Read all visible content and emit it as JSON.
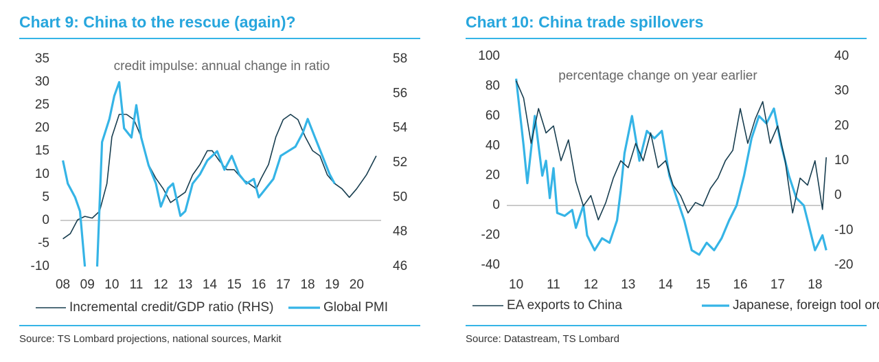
{
  "chart_data": [
    {
      "type": "line",
      "title": "Chart 9: China to the rescue (again)?",
      "subtitle": "credit impulse: annual change in ratio",
      "source": "Source: TS Lombard projections, national sources, Markit",
      "xlim": [
        2007.9,
        2021.0
      ],
      "xticks": [
        {
          "value": 2008,
          "label": "08"
        },
        {
          "value": 2009,
          "label": "09"
        },
        {
          "value": 2010,
          "label": "10"
        },
        {
          "value": 2011,
          "label": "11"
        },
        {
          "value": 2012,
          "label": "12"
        },
        {
          "value": 2013,
          "label": "13"
        },
        {
          "value": 2014,
          "label": "14"
        },
        {
          "value": 2015,
          "label": "15"
        },
        {
          "value": 2016,
          "label": "16"
        },
        {
          "value": 2017,
          "label": "17"
        },
        {
          "value": 2018,
          "label": "18"
        },
        {
          "value": 2019,
          "label": "19"
        },
        {
          "value": 2020,
          "label": "20"
        }
      ],
      "ylim": [
        -10,
        35
      ],
      "yticks": [
        -10,
        -5,
        0,
        5,
        10,
        15,
        20,
        25,
        30,
        35
      ],
      "y2lim": [
        46,
        58
      ],
      "y2ticks": [
        46,
        48,
        50,
        52,
        54,
        56,
        58
      ],
      "series": [
        {
          "name": "Incremental credit/GDP ratio (RHS)",
          "color": "#173d4f",
          "axis": "y2",
          "x": [
            2008.0,
            2008.3,
            2008.6,
            2008.9,
            2009.2,
            2009.5,
            2009.8,
            2010.0,
            2010.3,
            2010.6,
            2010.9,
            2011.2,
            2011.5,
            2011.8,
            2012.1,
            2012.4,
            2012.7,
            2013.0,
            2013.3,
            2013.6,
            2013.9,
            2014.1,
            2014.4,
            2014.7,
            2015.0,
            2015.3,
            2015.6,
            2015.9,
            2016.1,
            2016.4,
            2016.7,
            2017.0,
            2017.3,
            2017.6,
            2017.9,
            2018.2,
            2018.5,
            2018.8,
            2019.1,
            2019.4,
            2019.7,
            2020.0,
            2020.4,
            2020.8
          ],
          "values": [
            47.6,
            47.9,
            48.7,
            48.9,
            48.8,
            49.2,
            50.8,
            53.5,
            54.8,
            54.8,
            54.5,
            53.5,
            51.9,
            51.1,
            50.5,
            49.7,
            50.0,
            50.3,
            51.3,
            51.9,
            52.7,
            52.7,
            52.1,
            51.6,
            51.6,
            51.1,
            50.8,
            50.5,
            51.1,
            51.9,
            53.5,
            54.5,
            54.8,
            54.5,
            53.5,
            52.7,
            52.4,
            51.3,
            50.8,
            50.5,
            50.0,
            50.5,
            51.3,
            52.4
          ]
        },
        {
          "name": "Global PMI",
          "color": "#35b4e6",
          "x": [
            2008.0,
            2008.2,
            2008.5,
            2008.7,
            2008.9,
            2009.1,
            2009.4,
            2009.6,
            2009.9,
            2010.1,
            2010.3,
            2010.5,
            2010.8,
            2011.0,
            2011.2,
            2011.5,
            2011.8,
            2012.0,
            2012.3,
            2012.5,
            2012.8,
            2013.0,
            2013.3,
            2013.6,
            2013.9,
            2014.1,
            2014.3,
            2014.6,
            2014.9,
            2015.2,
            2015.5,
            2015.8,
            2016.0,
            2016.3,
            2016.6,
            2016.9,
            2017.2,
            2017.5,
            2017.8,
            2018.0,
            2018.3,
            2018.6,
            2018.9,
            2019.1
          ],
          "values": [
            13,
            8,
            5,
            2,
            -10,
            null,
            -10,
            17,
            22,
            27,
            30,
            20,
            18,
            25,
            18,
            12,
            8,
            3,
            7,
            8,
            1,
            2,
            8,
            10,
            13,
            14,
            15,
            11,
            14,
            10,
            8,
            9,
            5,
            7,
            9,
            14,
            15,
            16,
            19,
            22,
            18,
            14,
            10,
            8
          ]
        }
      ]
    },
    {
      "type": "line",
      "title": "Chart 10: China trade spillovers",
      "subtitle": "percentage change on year earlier",
      "source": "Source: Datastream, TS Lombard",
      "xlim": [
        2009.75,
        2018.15
      ],
      "xticks": [
        {
          "value": 2010,
          "label": "10"
        },
        {
          "value": 2011,
          "label": "11"
        },
        {
          "value": 2012,
          "label": "12"
        },
        {
          "value": 2013,
          "label": "13"
        },
        {
          "value": 2014,
          "label": "14"
        },
        {
          "value": 2015,
          "label": "15"
        },
        {
          "value": 2016,
          "label": "16"
        },
        {
          "value": 2017,
          "label": "17"
        },
        {
          "value": 2018,
          "label": "18"
        }
      ],
      "ylim": [
        -40,
        100
      ],
      "yticks": [
        -40,
        -20,
        0,
        20,
        40,
        60,
        80,
        100
      ],
      "y2lim": [
        -20,
        40
      ],
      "y2ticks": [
        -20,
        -10,
        0,
        10,
        20,
        30,
        40
      ],
      "series": [
        {
          "name": "Japanese, foreign tool orders",
          "color": "#35b4e6",
          "x": [
            2010.0,
            2010.2,
            2010.3,
            2010.5,
            2010.7,
            2010.8,
            2010.9,
            2011.0,
            2011.1,
            2011.3,
            2011.5,
            2011.6,
            2011.8,
            2011.9,
            2012.1,
            2012.3,
            2012.5,
            2012.7,
            2012.8,
            2012.9,
            2013.1,
            2013.3,
            2013.5,
            2013.7,
            2013.9,
            2014.1,
            2014.3,
            2014.5,
            2014.7,
            2014.9,
            2015.1,
            2015.3,
            2015.5,
            2015.7,
            2015.9,
            2016.1,
            2016.3,
            2016.5,
            2016.7,
            2016.9,
            2017.1,
            2017.3,
            2017.5,
            2017.7,
            2017.8,
            2018.0,
            2018.2,
            2018.3
          ],
          "values": [
            85,
            40,
            15,
            60,
            20,
            30,
            5,
            25,
            -5,
            -7,
            -3,
            -15,
            0,
            -20,
            -30,
            -22,
            -25,
            -10,
            10,
            35,
            60,
            30,
            50,
            45,
            50,
            20,
            5,
            -10,
            -30,
            -33,
            -25,
            -30,
            -22,
            -10,
            0,
            20,
            45,
            60,
            55,
            65,
            40,
            20,
            5,
            0,
            -10,
            -30,
            -20,
            -30
          ]
        },
        {
          "name": "EA exports to China",
          "color": "#173d4f",
          "axis": "y2",
          "x": [
            2010.0,
            2010.2,
            2010.4,
            2010.6,
            2010.8,
            2011.0,
            2011.2,
            2011.4,
            2011.6,
            2011.8,
            2012.0,
            2012.2,
            2012.4,
            2012.6,
            2012.8,
            2013.0,
            2013.2,
            2013.4,
            2013.6,
            2013.8,
            2014.0,
            2014.2,
            2014.4,
            2014.6,
            2014.8,
            2015.0,
            2015.2,
            2015.4,
            2015.6,
            2015.8,
            2016.0,
            2016.2,
            2016.4,
            2016.6,
            2016.8,
            2017.0,
            2017.2,
            2017.4,
            2017.6,
            2017.8,
            2018.0,
            2018.2,
            2018.3
          ],
          "values": [
            33,
            28,
            15,
            25,
            18,
            20,
            10,
            16,
            4,
            -3,
            0,
            -7,
            -2,
            5,
            10,
            8,
            15,
            10,
            18,
            8,
            10,
            3,
            0,
            -5,
            -2,
            -3,
            2,
            5,
            10,
            13,
            25,
            15,
            22,
            27,
            15,
            20,
            10,
            -5,
            5,
            3,
            10,
            -4,
            11
          ]
        }
      ]
    }
  ]
}
